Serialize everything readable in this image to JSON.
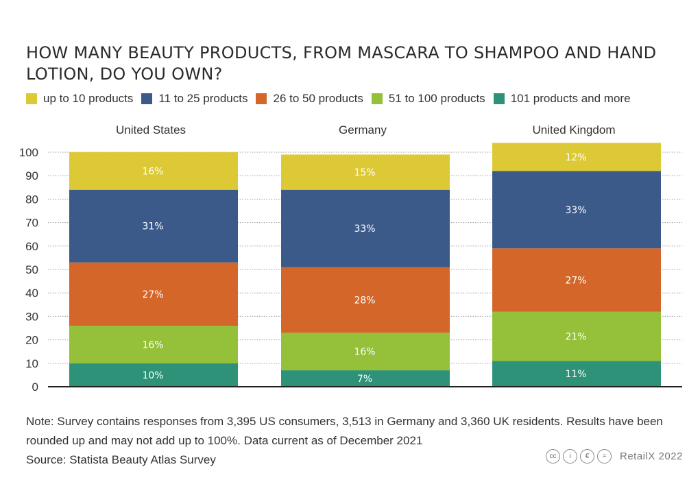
{
  "title": "HOW MANY BEAUTY PRODUCTS, FROM MASCARA TO SHAMPOO AND HAND LOTION, DO YOU OWN?",
  "legend": [
    {
      "label": "up to 10 products",
      "color": "#ddc936"
    },
    {
      "label": "11 to 25 products",
      "color": "#3b5a8a"
    },
    {
      "label": "26 to 50 products",
      "color": "#d36628"
    },
    {
      "label": "51 to 100 products",
      "color": "#94c03a"
    },
    {
      "label": "101 products and more",
      "color": "#2e9278"
    }
  ],
  "chart_data": {
    "type": "bar",
    "stacked": true,
    "categories": [
      "United States",
      "Germany",
      "United Kingdom"
    ],
    "series": [
      {
        "name": "101 products and more",
        "values": [
          10,
          7,
          11
        ],
        "labels": [
          "10%",
          "7%",
          "11%"
        ],
        "color": "#2e9278"
      },
      {
        "name": "51 to 100 products",
        "values": [
          16,
          16,
          21
        ],
        "labels": [
          "16%",
          "16%",
          "21%"
        ],
        "color": "#94c03a"
      },
      {
        "name": "26 to 50 products",
        "values": [
          27,
          28,
          27
        ],
        "labels": [
          "27%",
          "28%",
          "27%"
        ],
        "color": "#d36628"
      },
      {
        "name": "11 to 25 products",
        "values": [
          31,
          33,
          33
        ],
        "labels": [
          "31%",
          "33%",
          "33%"
        ],
        "color": "#3b5a8a"
      },
      {
        "name": "up to 10 products",
        "values": [
          16,
          15,
          12
        ],
        "labels": [
          "16%",
          "15%",
          "12%"
        ],
        "color": "#ddc936"
      }
    ],
    "ylim": [
      0,
      100
    ],
    "yticks": [
      "0",
      "10",
      "20",
      "30",
      "40",
      "50",
      "60",
      "70",
      "80",
      "90",
      "100"
    ],
    "grid": true
  },
  "footer": {
    "note": "Note: Survey contains responses from 3,395 US consumers, 3,513 in Germany and 3,360 UK residents. Results have been rounded up and may not add up to 100%. Data current as of December 2021",
    "source": "Source: Statista Beauty Atlas Survey"
  },
  "credit": {
    "icons": [
      "cc",
      "i",
      "€",
      "="
    ],
    "text": "RetailX 2022"
  }
}
